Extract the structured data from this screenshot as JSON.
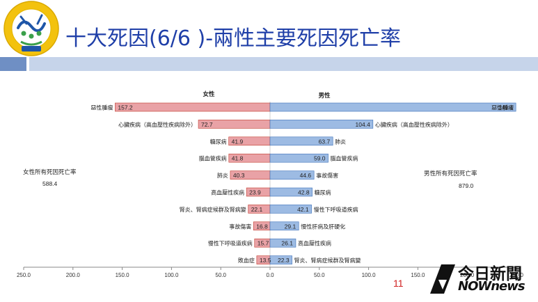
{
  "header": {
    "title": "十大死因(6/6 )-兩性主要死因死亡率"
  },
  "logo": {
    "seal_text": "衛生福利部",
    "ring_text": "Ministry of Health and Welfare"
  },
  "page_number": "11",
  "watermark": {
    "line1": "今日新聞",
    "line2": "NOWnews"
  },
  "colors": {
    "title": "#1f3fa8",
    "female_bar": "#e9a2a6",
    "male_bar": "#9dbbe3"
  },
  "chart_data": {
    "type": "bar",
    "female_header": "女性",
    "male_header": "男性",
    "female_total_label": "女性所有死因死亡率",
    "female_total_value": "588.4",
    "male_total_label": "男性所有死因死亡率",
    "male_total_value": "879.0",
    "xlim": [
      -250,
      250
    ],
    "x_ticks": [
      "250.0",
      "200.0",
      "150.0",
      "100.0",
      "50.0",
      "0.0",
      "50.0",
      "100.0",
      "150.0",
      "200.0",
      "250.0"
    ],
    "female": [
      {
        "cause": "惡性腫瘤",
        "value": 157.2
      },
      {
        "cause": "心臟疾病（高血壓性疾病除外）",
        "value": 72.7
      },
      {
        "cause": "糖尿病",
        "value": 41.9
      },
      {
        "cause": "腦血管疾病",
        "value": 41.8
      },
      {
        "cause": "肺炎",
        "value": 40.3
      },
      {
        "cause": "高血壓性疾病",
        "value": 23.9
      },
      {
        "cause": "腎炎、腎病症候群及腎病變",
        "value": 22.1
      },
      {
        "cause": "事故傷害",
        "value": 16.8
      },
      {
        "cause": "慢性下呼吸道疾病",
        "value": 15.7
      },
      {
        "cause": "敗血症",
        "value": 13.5
      }
    ],
    "male": [
      {
        "cause": "惡性腫瘤",
        "value": 249.4
      },
      {
        "cause": "心臟疾病（高血壓性疾病除外）",
        "value": 104.4
      },
      {
        "cause": "肺炎",
        "value": 63.7
      },
      {
        "cause": "腦血管疾病",
        "value": 59.0
      },
      {
        "cause": "事故傷害",
        "value": 44.6
      },
      {
        "cause": "糖尿病",
        "value": 42.8
      },
      {
        "cause": "慢性下呼吸道疾病",
        "value": 42.1
      },
      {
        "cause": "慢性肝病及肝硬化",
        "value": 29.1
      },
      {
        "cause": "高血壓性疾病",
        "value": 26.1
      },
      {
        "cause": "腎炎、腎病症候群及腎病變",
        "value": 22.3
      }
    ]
  }
}
